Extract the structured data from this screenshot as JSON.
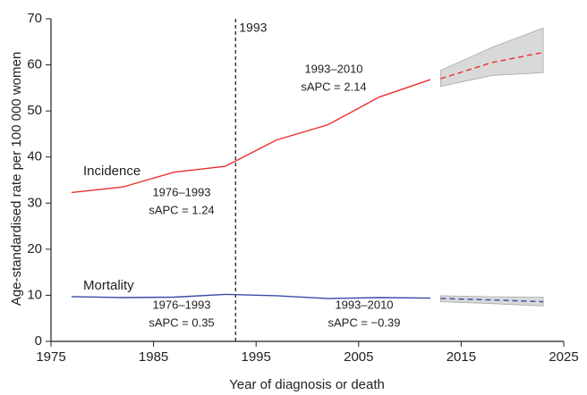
{
  "chart_data": {
    "type": "line",
    "xlabel": "Year of diagnosis or death",
    "ylabel": "Age-standardised rate per 100 000 women",
    "xlim": [
      1975,
      2025
    ],
    "xticks": [
      1975,
      1985,
      1995,
      2005,
      2015,
      2025
    ],
    "ylim": [
      0,
      70
    ],
    "yticks": [
      0,
      10,
      20,
      30,
      40,
      50,
      60,
      70
    ],
    "series": [
      {
        "name": "Incidence",
        "color": "#e8312f",
        "x": [
          1977,
          1982,
          1987,
          1992,
          1997,
          2002,
          2007,
          2012
        ],
        "values": [
          32.3,
          33.5,
          36.7,
          38,
          43.7,
          47,
          53,
          56.8
        ]
      },
      {
        "color": "#e8312f",
        "dashed": true,
        "x": [
          2013,
          2018,
          2023
        ],
        "values": [
          57,
          60.5,
          62.7
        ],
        "lower": [
          55.3,
          57.7,
          58.3
        ],
        "upper": [
          58.8,
          63.8,
          68
        ]
      },
      {
        "name": "Mortality",
        "color": "#3a4aa8",
        "x": [
          1977,
          1982,
          1987,
          1992,
          1997,
          2002,
          2007,
          2012
        ],
        "values": [
          9.7,
          9.5,
          9.6,
          10.2,
          9.9,
          9.3,
          9.5,
          9.4
        ]
      },
      {
        "color": "#3a4aa8",
        "dashed": true,
        "x": [
          2013,
          2018,
          2023
        ],
        "values": [
          9.3,
          9.0,
          8.6
        ],
        "lower": [
          8.6,
          8.2,
          7.7
        ],
        "upper": [
          9.9,
          9.7,
          9.6
        ]
      }
    ],
    "vline": {
      "x": 1993,
      "label": "1993"
    },
    "annotations": [
      {
        "lines": [
          "1993–2010",
          "sAPC = 2.14"
        ]
      },
      {
        "lines": [
          "1976–1993",
          "sAPC = 1.24"
        ]
      },
      {
        "lines": [
          "1976–1993",
          "sAPC = 0.35"
        ]
      },
      {
        "lines": [
          "1993–2010",
          "sAPC = −0.39"
        ]
      }
    ]
  }
}
